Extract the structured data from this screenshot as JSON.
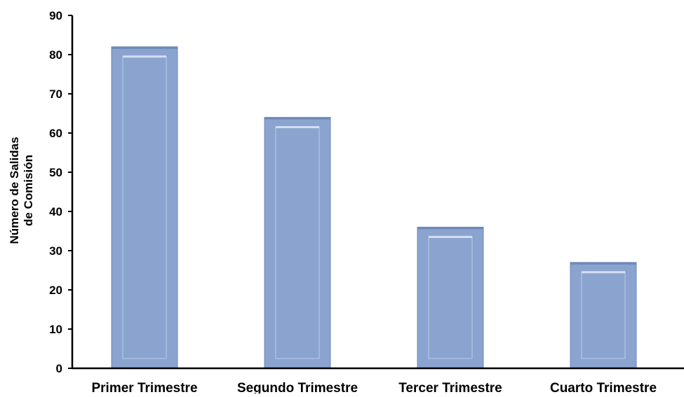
{
  "colors": {
    "bar_fill": "#8ba3cf",
    "bar_edge_light": "#b6c7e6",
    "bar_edge_dark": "#6f89b8",
    "axis": "#000000"
  },
  "chart_data": {
    "type": "bar",
    "title": "",
    "xlabel": "",
    "ylabel": "Número de Salidas de Comisión",
    "ylabel_lines": [
      "Número de Salidas",
      "de Comisión"
    ],
    "categories": [
      "Primer Trimestre",
      "Segundo Trimestre",
      "Tercer Trimestre",
      "Cuarto Trimestre"
    ],
    "values": [
      82,
      64,
      36,
      27
    ],
    "ylim": [
      0,
      90
    ],
    "yticks": [
      0,
      10,
      20,
      30,
      40,
      50,
      60,
      70,
      80,
      90
    ],
    "grid": false,
    "legend": "none"
  }
}
